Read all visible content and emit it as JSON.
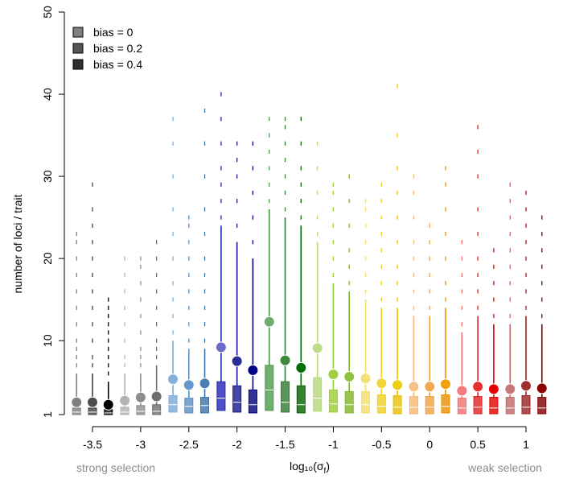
{
  "chart_data": {
    "type": "boxplot",
    "xlabel": "log₁₀(σ",
    "xlabel_sub": "f",
    "xlabel_close": ")",
    "ylabel": "number of loci / trait",
    "ylim": [
      1,
      50
    ],
    "yticks": [
      1,
      10,
      20,
      30,
      40,
      50
    ],
    "xlim": [
      -3.85,
      1.25
    ],
    "xticks": [
      -3.5,
      -3,
      -2.5,
      -2,
      -1.5,
      -1,
      -0.5,
      0,
      0.5,
      1
    ],
    "xtick_labels": [
      "-3.5",
      "-3",
      "-2.5",
      "-2",
      "-1.5",
      "-1",
      "-0.5",
      "0",
      "0.5",
      "1"
    ],
    "left_note": "strong selection",
    "right_note": "weak selection",
    "legend": {
      "position": "top-left",
      "entries": [
        {
          "label": "bias = 0",
          "color": "#808080"
        },
        {
          "label": "bias = 0.2",
          "color": "#555555"
        },
        {
          "label": "bias = 0.4",
          "color": "#303030"
        }
      ]
    },
    "series": [
      {
        "group": -3.5,
        "bias": 0,
        "mean": 2.5,
        "q1": 1,
        "median": 1.3,
        "q3": 1.8,
        "whisker_hi": 6,
        "outliers": [
          7,
          8,
          9,
          10,
          12,
          14,
          16,
          18,
          20,
          22,
          23
        ],
        "color": "#808080",
        "mean_color": "#808080"
      },
      {
        "group": -3.5,
        "bias": 0.2,
        "mean": 2.5,
        "q1": 1,
        "median": 1.3,
        "q3": 1.8,
        "whisker_hi": 6,
        "outliers": [
          7,
          8,
          10,
          12,
          14,
          16,
          18,
          20,
          22,
          24,
          26,
          29
        ],
        "color": "#404040",
        "mean_color": "#4d4d4d"
      },
      {
        "group": -3.5,
        "bias": 0.4,
        "mean": 2.2,
        "q1": 1,
        "median": 1.2,
        "q3": 1.6,
        "whisker_hi": 5,
        "outliers": [
          6,
          7,
          8,
          9,
          10,
          11,
          12,
          13,
          14,
          15
        ],
        "color": "#000000",
        "mean_color": "#000000"
      },
      {
        "group": -3,
        "bias": 0,
        "mean": 2.7,
        "q1": 1,
        "median": 1.3,
        "q3": 1.9,
        "whisker_hi": 6,
        "outliers": [
          7,
          8,
          10,
          12,
          14,
          16,
          18,
          20
        ],
        "color": "#b0b0b0",
        "mean_color": "#b3b3b3"
      },
      {
        "group": -3,
        "bias": 0.2,
        "mean": 3.1,
        "q1": 1,
        "median": 1.4,
        "q3": 2.1,
        "whisker_hi": 6,
        "outliers": [
          7,
          8,
          9,
          11,
          13,
          15,
          17,
          19,
          20
        ],
        "color": "#8c8c8c",
        "mean_color": "#8c8c8c"
      },
      {
        "group": -3,
        "bias": 0.4,
        "mean": 3.2,
        "q1": 1,
        "median": 1.4,
        "q3": 2.2,
        "whisker_hi": 7,
        "outliers": [
          8,
          9,
          10,
          12,
          14,
          16,
          18,
          20,
          22
        ],
        "color": "#6e6e6e",
        "mean_color": "#6e6e6e"
      },
      {
        "group": -2.5,
        "bias": 0,
        "mean": 5.3,
        "q1": 1.3,
        "median": 2.2,
        "q3": 3.3,
        "whisker_hi": 10,
        "outliers": [
          11,
          13,
          15,
          17,
          20,
          23,
          26,
          30,
          34,
          37
        ],
        "color": "#7aaad6",
        "mean_color": "#82b1dc"
      },
      {
        "group": -2.5,
        "bias": 0.2,
        "mean": 4.6,
        "q1": 1.2,
        "median": 2,
        "q3": 3,
        "whisker_hi": 9,
        "outliers": [
          10,
          12,
          14,
          16,
          18,
          20,
          22,
          24,
          25
        ],
        "color": "#5b8fc2",
        "mean_color": "#6399cc"
      },
      {
        "group": -2.5,
        "bias": 0.4,
        "mean": 4.8,
        "q1": 1.2,
        "median": 2.1,
        "q3": 3.1,
        "whisker_hi": 9,
        "outliers": [
          10,
          12,
          14,
          16,
          18,
          20,
          23,
          26,
          30,
          34,
          38
        ],
        "color": "#3a72aa",
        "mean_color": "#4a7fb5"
      },
      {
        "group": -2,
        "bias": 0,
        "mean": 9.2,
        "q1": 1.5,
        "median": 3,
        "q3": 5,
        "whisker_hi": 24,
        "outliers": [
          25,
          27,
          29,
          31,
          34,
          37,
          40
        ],
        "color": "#2424b8",
        "mean_color": "#6a6ac8"
      },
      {
        "group": -2,
        "bias": 0.2,
        "mean": 7.5,
        "q1": 1.3,
        "median": 2.5,
        "q3": 4.5,
        "whisker_hi": 22,
        "outliers": [
          24,
          27,
          30,
          32,
          34
        ],
        "color": "#16168f",
        "mean_color": "#2c2c9a"
      },
      {
        "group": -2,
        "bias": 0.4,
        "mean": 6.4,
        "q1": 1.2,
        "median": 2.2,
        "q3": 4,
        "whisker_hi": 20,
        "outliers": [
          22,
          25,
          28,
          31,
          34
        ],
        "color": "#00007a",
        "mean_color": "#00008b"
      },
      {
        "group": -1.5,
        "bias": 0,
        "mean": 12.3,
        "q1": 1.5,
        "median": 4,
        "q3": 7,
        "whisker_hi": 26,
        "outliers": [
          27,
          29,
          31,
          33,
          35,
          37
        ],
        "color": "#4a9a4a",
        "mean_color": "#70ac70"
      },
      {
        "group": -1.5,
        "bias": 0.2,
        "mean": 7.6,
        "q1": 1.3,
        "median": 2.5,
        "q3": 5,
        "whisker_hi": 25,
        "outliers": [
          26,
          28,
          30,
          32,
          34,
          36,
          37
        ],
        "color": "#2e7d2e",
        "mean_color": "#3d8a3d"
      },
      {
        "group": -1.5,
        "bias": 0.4,
        "mean": 6.7,
        "q1": 1.2,
        "median": 2.2,
        "q3": 4.5,
        "whisker_hi": 24,
        "outliers": [
          25,
          27,
          29,
          31,
          34,
          37
        ],
        "color": "#006400",
        "mean_color": "#007000"
      },
      {
        "group": -1,
        "bias": 0,
        "mean": 9.1,
        "q1": 1.4,
        "median": 3,
        "q3": 5.5,
        "whisker_hi": 22,
        "outliers": [
          23,
          25,
          28,
          31,
          34
        ],
        "color": "#b7d77a",
        "mean_color": "#bedc8a"
      },
      {
        "group": -1,
        "bias": 0.2,
        "mean": 5.9,
        "q1": 1.3,
        "median": 2.3,
        "q3": 4,
        "whisker_hi": 17,
        "outliers": [
          18,
          20,
          22,
          24,
          26,
          28,
          29
        ],
        "color": "#9acd32",
        "mean_color": "#a0d040"
      },
      {
        "group": -1,
        "bias": 0.4,
        "mean": 5.6,
        "q1": 1.2,
        "median": 2.2,
        "q3": 3.8,
        "whisker_hi": 16,
        "outliers": [
          17,
          19,
          21,
          24,
          27,
          30
        ],
        "color": "#7fb526",
        "mean_color": "#8cc43c"
      },
      {
        "group": -0.5,
        "bias": 0,
        "mean": 5.4,
        "q1": 1.2,
        "median": 2.2,
        "q3": 3.8,
        "whisker_hi": 15,
        "outliers": [
          16,
          18,
          20,
          22,
          24,
          26,
          27
        ],
        "color": "#f2de6a",
        "mean_color": "#f3e27a"
      },
      {
        "group": -0.5,
        "bias": 0.2,
        "mean": 4.8,
        "q1": 1.2,
        "median": 2,
        "q3": 3.4,
        "whisker_hi": 14,
        "outliers": [
          15,
          17,
          19,
          21,
          23,
          25,
          27,
          29
        ],
        "color": "#f0d020",
        "mean_color": "#f2d43a"
      },
      {
        "group": -0.5,
        "bias": 0.4,
        "mean": 4.6,
        "q1": 1.1,
        "median": 1.9,
        "q3": 3.3,
        "whisker_hi": 14,
        "outliers": [
          15,
          17,
          19,
          22,
          25,
          28,
          31,
          35,
          41
        ],
        "color": "#e8c000",
        "mean_color": "#f0cc14"
      },
      {
        "group": 0,
        "bias": 0,
        "mean": 4.4,
        "q1": 1.1,
        "median": 1.9,
        "q3": 3.2,
        "whisker_hi": 13,
        "outliers": [
          14,
          16,
          18,
          20,
          22,
          25,
          28,
          30
        ],
        "color": "#f5b870",
        "mean_color": "#f7c286"
      },
      {
        "group": 0,
        "bias": 0.2,
        "mean": 4.4,
        "q1": 1.1,
        "median": 1.9,
        "q3": 3.2,
        "whisker_hi": 13,
        "outliers": [
          14,
          16,
          18,
          20,
          22,
          24
        ],
        "color": "#f0a040",
        "mean_color": "#f2aa50"
      },
      {
        "group": 0,
        "bias": 0.4,
        "mean": 4.7,
        "q1": 1.2,
        "median": 2,
        "q3": 3.4,
        "whisker_hi": 14,
        "outliers": [
          15,
          17,
          20,
          23,
          26,
          29,
          31
        ],
        "color": "#e89000",
        "mean_color": "#f0a010"
      },
      {
        "group": 0.5,
        "bias": 0,
        "mean": 3.9,
        "q1": 1.1,
        "median": 1.8,
        "q3": 3,
        "whisker_hi": 11,
        "outliers": [
          12,
          14,
          16,
          18,
          20,
          22
        ],
        "color": "#f07070",
        "mean_color": "#f47a80"
      },
      {
        "group": 0.5,
        "bias": 0.2,
        "mean": 4.4,
        "q1": 1.1,
        "median": 1.9,
        "q3": 3.2,
        "whisker_hi": 13,
        "outliers": [
          14,
          16,
          18,
          20,
          23,
          26,
          30,
          33,
          36
        ],
        "color": "#e02020",
        "mean_color": "#e83030"
      },
      {
        "group": 0.5,
        "bias": 0.4,
        "mean": 4.1,
        "q1": 1.1,
        "median": 1.8,
        "q3": 3.1,
        "whisker_hi": 12,
        "outliers": [
          13,
          15,
          17,
          19,
          21
        ],
        "color": "#e00000",
        "mean_color": "#e80000"
      },
      {
        "group": 1,
        "bias": 0,
        "mean": 4.1,
        "q1": 1.1,
        "median": 1.8,
        "q3": 3.1,
        "whisker_hi": 12,
        "outliers": [
          13,
          15,
          17,
          19,
          21,
          23,
          25,
          27,
          29
        ],
        "color": "#c06868",
        "mean_color": "#c87878"
      },
      {
        "group": 1,
        "bias": 0.2,
        "mean": 4.5,
        "q1": 1.1,
        "median": 1.9,
        "q3": 3.3,
        "whisker_hi": 13,
        "outliers": [
          14,
          16,
          18,
          20,
          22,
          24,
          26,
          28
        ],
        "color": "#9a2020",
        "mean_color": "#a03030"
      },
      {
        "group": 1,
        "bias": 0.4,
        "mean": 4.2,
        "q1": 1.1,
        "median": 1.8,
        "q3": 3.1,
        "whisker_hi": 12,
        "outliers": [
          13,
          15,
          17,
          19,
          21,
          23,
          25
        ],
        "color": "#800000",
        "mean_color": "#8b0000"
      }
    ]
  }
}
